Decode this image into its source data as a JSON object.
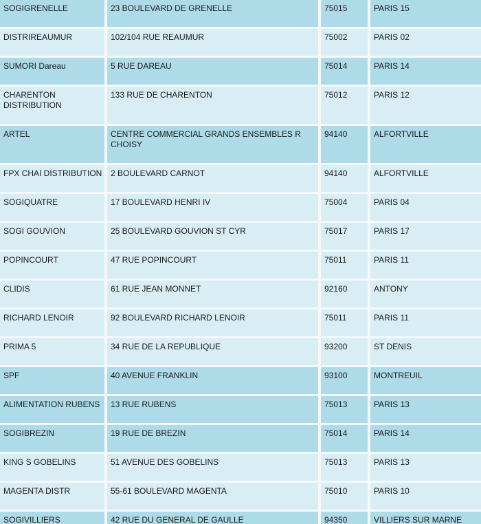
{
  "table": {
    "colors": {
      "row_dark": "#aedbe8",
      "row_light": "#d9edf4",
      "separator": "#f4fafc",
      "text": "#1b1b1b"
    },
    "rows": [
      {
        "name": "SOGIGRENELLE",
        "address": "23 BOULEVARD DE GRENELLE",
        "postal_code": "75015",
        "city": "PARIS 15",
        "shade": "dark"
      },
      {
        "name": "DISTRIREAUMUR",
        "address": "102/104 RUE REAUMUR",
        "postal_code": "75002",
        "city": "PARIS 02",
        "shade": "light"
      },
      {
        "name": "SUMORI Dareau",
        "address": "5 RUE DAREAU",
        "postal_code": "75014",
        "city": "PARIS 14",
        "shade": "dark"
      },
      {
        "name": "CHARENTON DISTRIBUTION",
        "address": "133 RUE DE CHARENTON",
        "postal_code": "75012",
        "city": "PARIS 12",
        "shade": "light"
      },
      {
        "name": "ARTEL",
        "address": "CENTRE COMMERCIAL GRANDS ENSEMBLES R CHOISY",
        "postal_code": "94140",
        "city": "ALFORTVILLE",
        "shade": "dark"
      },
      {
        "name": "FPX CHAI DISTRIBUTION",
        "address": "2 BOULEVARD CARNOT",
        "postal_code": "94140",
        "city": "ALFORTVILLE",
        "shade": "light"
      },
      {
        "name": "SOGIQUATRE",
        "address": "17 BOULEVARD HENRI IV",
        "postal_code": "75004",
        "city": "PARIS 04",
        "shade": "light"
      },
      {
        "name": "SOGI GOUVION",
        "address": "25 BOULEVARD GOUVION ST CYR",
        "postal_code": "75017",
        "city": "PARIS 17",
        "shade": "light"
      },
      {
        "name": "POPINCOURT",
        "address": "47 RUE POPINCOURT",
        "postal_code": "75011",
        "city": "PARIS 11",
        "shade": "light"
      },
      {
        "name": "CLIDIS",
        "address": "61 RUE JEAN MONNET",
        "postal_code": "92160",
        "city": "ANTONY",
        "shade": "light"
      },
      {
        "name": "RICHARD LENOIR",
        "address": "92 BOULEVARD RICHARD LENOIR",
        "postal_code": "75011",
        "city": "PARIS 11",
        "shade": "light"
      },
      {
        "name": "PRIMA 5",
        "address": "34 RUE DE LA REPUBLIQUE",
        "postal_code": "93200",
        "city": "ST DENIS",
        "shade": "light"
      },
      {
        "name": "SPF",
        "address": "40 AVENUE FRANKLIN",
        "postal_code": "93100",
        "city": "MONTREUIL",
        "shade": "dark"
      },
      {
        "name": "ALIMENTATION RUBENS",
        "address": "13 RUE RUBENS",
        "postal_code": "75013",
        "city": "PARIS 13",
        "shade": "dark"
      },
      {
        "name": "SOGIBREZIN",
        "address": "19 RUE DE BREZIN",
        "postal_code": "75014",
        "city": "PARIS 14",
        "shade": "dark"
      },
      {
        "name": "KING S GOBELINS",
        "address": "51 AVENUE DES GOBELINS",
        "postal_code": "75013",
        "city": "PARIS 13",
        "shade": "light"
      },
      {
        "name": "MAGENTA DISTR",
        "address": "55-61 BOULEVARD MAGENTA",
        "postal_code": "75010",
        "city": "PARIS 10",
        "shade": "light"
      },
      {
        "name": "SOGIVILLIERS",
        "address": "42 RUE DU GENERAL DE GAULLE",
        "postal_code": "94350",
        "city": "VILLIERS SUR MARNE",
        "shade": "dark"
      }
    ]
  }
}
